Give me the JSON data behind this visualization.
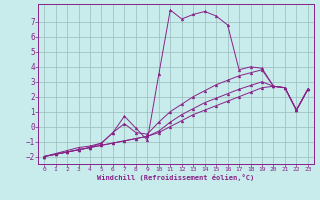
{
  "xlabel": "Windchill (Refroidissement éolien,°C)",
  "xlim": [
    -0.5,
    23.5
  ],
  "ylim": [
    -2.5,
    8.2
  ],
  "xticks": [
    0,
    1,
    2,
    3,
    4,
    5,
    6,
    7,
    8,
    9,
    10,
    11,
    12,
    13,
    14,
    15,
    16,
    17,
    18,
    19,
    20,
    21,
    22,
    23
  ],
  "yticks": [
    -2,
    -1,
    0,
    1,
    2,
    3,
    4,
    5,
    6,
    7
  ],
  "bg_color": "#c8ecec",
  "line_color": "#882288",
  "grid_color": "#99bbbb",
  "lines": [
    {
      "x": [
        0,
        1,
        2,
        3,
        4,
        5,
        6,
        7,
        8,
        9,
        10,
        11,
        12,
        13,
        14,
        15,
        16,
        17,
        18,
        19,
        20,
        21,
        22,
        23
      ],
      "y": [
        -2.0,
        -1.8,
        -1.6,
        -1.4,
        -1.3,
        -1.1,
        -0.4,
        0.7,
        -0.1,
        -0.9,
        3.5,
        7.8,
        7.2,
        7.5,
        7.7,
        7.4,
        6.8,
        3.8,
        4.0,
        3.9,
        2.7,
        2.6,
        1.1,
        2.5
      ]
    },
    {
      "x": [
        0,
        1,
        2,
        3,
        4,
        5,
        6,
        7,
        8,
        9,
        10,
        11,
        12,
        13,
        14,
        15,
        16,
        17,
        18,
        19,
        20,
        21,
        22,
        23
      ],
      "y": [
        -2.0,
        -1.85,
        -1.7,
        -1.55,
        -1.4,
        -1.1,
        -0.4,
        0.2,
        -0.4,
        -0.5,
        0.3,
        1.0,
        1.5,
        2.0,
        2.4,
        2.8,
        3.1,
        3.4,
        3.6,
        3.8,
        2.7,
        2.6,
        1.1,
        2.5
      ]
    },
    {
      "x": [
        0,
        1,
        2,
        3,
        4,
        5,
        6,
        7,
        8,
        9,
        10,
        11,
        12,
        13,
        14,
        15,
        16,
        17,
        18,
        19,
        20,
        21,
        22,
        23
      ],
      "y": [
        -2.0,
        -1.85,
        -1.7,
        -1.55,
        -1.4,
        -1.25,
        -1.1,
        -0.95,
        -0.8,
        -0.65,
        -0.3,
        0.3,
        0.8,
        1.2,
        1.6,
        1.9,
        2.2,
        2.5,
        2.75,
        3.0,
        2.7,
        2.6,
        1.1,
        2.5
      ]
    },
    {
      "x": [
        0,
        1,
        2,
        3,
        4,
        5,
        6,
        7,
        8,
        9,
        10,
        11,
        12,
        13,
        14,
        15,
        16,
        17,
        18,
        19,
        20,
        21,
        22,
        23
      ],
      "y": [
        -2.0,
        -1.85,
        -1.7,
        -1.55,
        -1.4,
        -1.25,
        -1.1,
        -0.95,
        -0.8,
        -0.65,
        -0.4,
        0.0,
        0.4,
        0.8,
        1.1,
        1.4,
        1.7,
        2.0,
        2.3,
        2.6,
        2.7,
        2.6,
        1.1,
        2.5
      ]
    }
  ]
}
